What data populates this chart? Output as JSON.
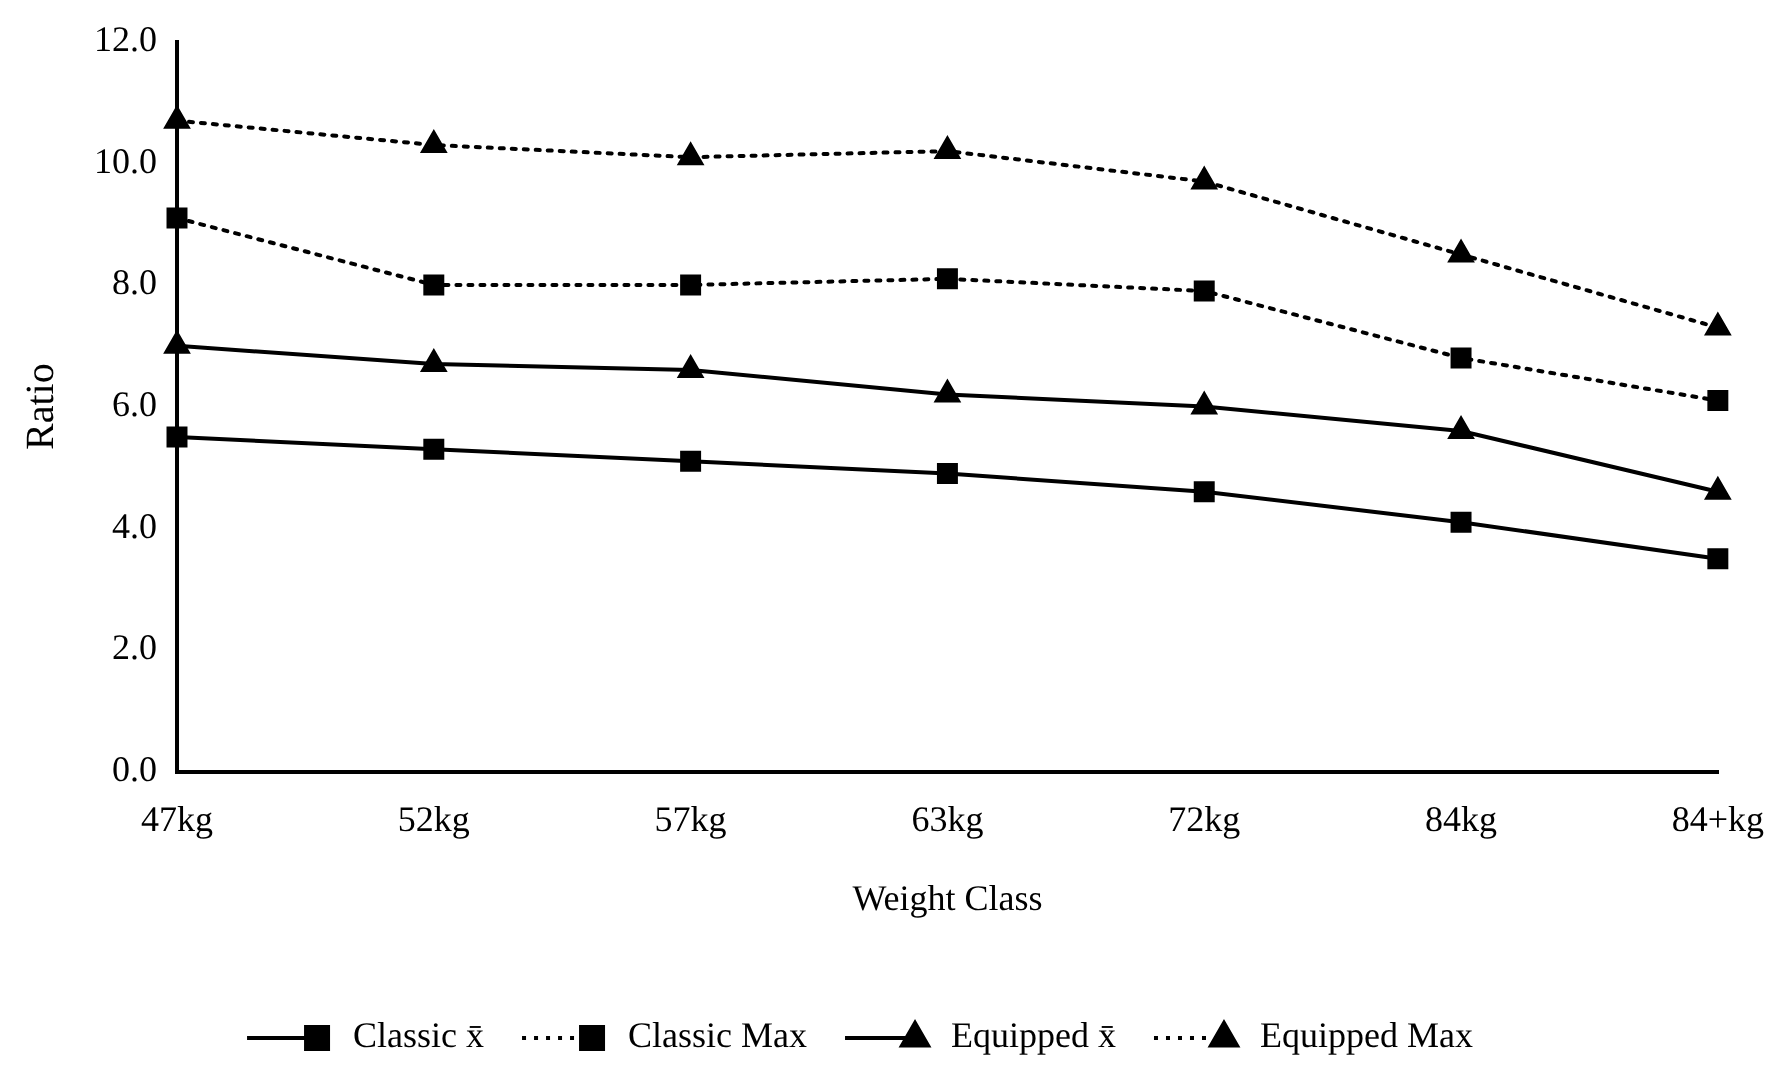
{
  "chart_data": {
    "type": "line",
    "xlabel": "Weight Class",
    "ylabel": "Ratio",
    "categories": [
      "47kg",
      "52kg",
      "57kg",
      "63kg",
      "72kg",
      "84kg",
      "84+kg"
    ],
    "ylim": [
      0,
      12
    ],
    "yticks": [
      {
        "value": 0,
        "label": "0.0"
      },
      {
        "value": 2,
        "label": "2.0"
      },
      {
        "value": 4,
        "label": "4.0"
      },
      {
        "value": 6,
        "label": "6.0"
      },
      {
        "value": 8,
        "label": "8.0"
      },
      {
        "value": 10,
        "label": "10.0"
      },
      {
        "value": 12,
        "label": "12.0"
      }
    ],
    "grid": false,
    "legend": "bottom",
    "series": [
      {
        "name": "Classic x̄",
        "color": "#000000",
        "marker": "square",
        "line_style": "solid",
        "values": [
          5.5,
          5.3,
          5.1,
          4.9,
          4.6,
          4.1,
          3.5
        ]
      },
      {
        "name": "Classic Max",
        "color": "#000000",
        "marker": "square",
        "line_style": "dotted",
        "values": [
          9.1,
          8.0,
          8.0,
          8.1,
          7.9,
          6.8,
          6.1
        ]
      },
      {
        "name": "Equipped x̄",
        "color": "#000000",
        "marker": "triangle",
        "line_style": "solid",
        "values": [
          7.0,
          6.7,
          6.6,
          6.2,
          6.0,
          5.6,
          4.6
        ]
      },
      {
        "name": "Equipped Max",
        "color": "#000000",
        "marker": "triangle",
        "line_style": "dotted",
        "values": [
          10.7,
          10.3,
          10.1,
          10.2,
          9.7,
          8.5,
          7.3
        ]
      }
    ]
  }
}
